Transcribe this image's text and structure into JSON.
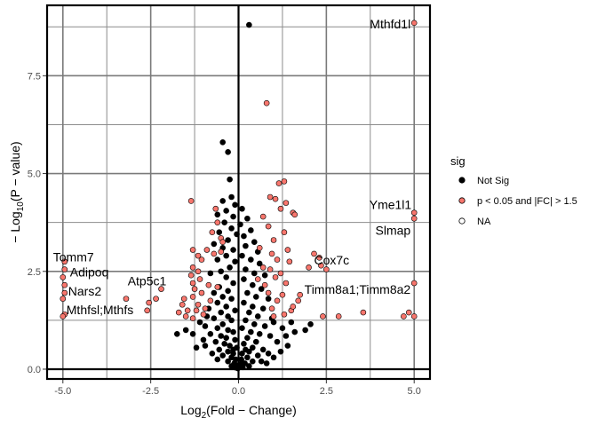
{
  "chart_data": {
    "type": "scatter",
    "title": "",
    "xlabel": {
      "prefix": "Log",
      "sub": "2",
      "rest": "(Fold − Change)"
    },
    "ylabel": {
      "prefix": "− Log",
      "sub": "10",
      "rest": "(P − value)"
    },
    "xlim": [
      -5.45,
      5.45
    ],
    "ylim": [
      -0.25,
      9.3
    ],
    "x_ticks": [
      -5.0,
      -2.5,
      0.0,
      2.5,
      5.0
    ],
    "x_tick_labels": [
      "-5.0",
      "-2.5",
      "0.0",
      "2.5",
      "5.0"
    ],
    "y_ticks": [
      0.0,
      2.5,
      5.0,
      7.5
    ],
    "y_tick_labels": [
      "0.0",
      "2.5",
      "5.0",
      "7.5"
    ],
    "grid": true,
    "reference_lines": {
      "x": 0,
      "y": 0
    },
    "legend": {
      "title": "sig",
      "placement": "right",
      "items": [
        {
          "label": "Not Sig",
          "fill": "#000000",
          "stroke": "#000000"
        },
        {
          "label": "p < 0.05 and |FC| > 1.5",
          "fill": "#F8766D",
          "stroke": "#000000"
        },
        {
          "label": "NA",
          "fill": "#ffffff",
          "stroke": "#000000"
        }
      ]
    },
    "series": [
      {
        "name": "Not Sig",
        "fill": "#000000",
        "points": [
          [
            0.3,
            8.8
          ],
          [
            -0.45,
            5.8
          ],
          [
            -0.3,
            5.55
          ],
          [
            -0.25,
            4.85
          ],
          [
            -0.2,
            4.4
          ],
          [
            -0.45,
            4.3
          ],
          [
            -0.1,
            4.2
          ],
          [
            -0.35,
            4.05
          ],
          [
            -0.6,
            3.95
          ],
          [
            -0.15,
            3.9
          ],
          [
            -0.4,
            3.75
          ],
          [
            -0.2,
            3.6
          ],
          [
            -0.55,
            3.5
          ],
          [
            -0.05,
            3.45
          ],
          [
            -0.3,
            3.3
          ],
          [
            -0.7,
            3.2
          ],
          [
            -0.45,
            3.1
          ],
          [
            -0.15,
            3.05
          ],
          [
            -0.35,
            2.9
          ],
          [
            -0.6,
            2.8
          ],
          [
            -0.1,
            2.75
          ],
          [
            -0.25,
            2.6
          ],
          [
            -0.5,
            2.5
          ],
          [
            -0.8,
            2.45
          ],
          [
            -0.35,
            2.35
          ],
          [
            -0.15,
            2.2
          ],
          [
            -0.55,
            2.1
          ],
          [
            -0.3,
            2.0
          ],
          [
            -0.7,
            1.95
          ],
          [
            -0.45,
            1.85
          ],
          [
            -0.2,
            1.8
          ],
          [
            -0.6,
            1.7
          ],
          [
            -0.35,
            1.6
          ],
          [
            -0.85,
            1.55
          ],
          [
            -0.1,
            1.5
          ],
          [
            -0.5,
            1.45
          ],
          [
            -0.3,
            1.35
          ],
          [
            -0.7,
            1.3
          ],
          [
            -0.2,
            1.25
          ],
          [
            -0.45,
            1.15
          ],
          [
            -0.95,
            1.1
          ],
          [
            -0.6,
            1.05
          ],
          [
            -0.3,
            1.0
          ],
          [
            -0.15,
            0.95
          ],
          [
            -0.8,
            0.9
          ],
          [
            -0.5,
            0.85
          ],
          [
            -0.35,
            0.8
          ],
          [
            -0.1,
            0.75
          ],
          [
            -0.65,
            0.7
          ],
          [
            -0.4,
            0.65
          ],
          [
            -0.25,
            0.6
          ],
          [
            -0.05,
            0.55
          ],
          [
            -0.55,
            0.5
          ],
          [
            -0.3,
            0.45
          ],
          [
            -0.15,
            0.4
          ],
          [
            -0.45,
            0.35
          ],
          [
            -0.2,
            0.3
          ],
          [
            -0.08,
            0.25
          ],
          [
            -0.3,
            0.2
          ],
          [
            -0.12,
            0.15
          ],
          [
            -0.05,
            0.1
          ],
          [
            -0.2,
            0.08
          ],
          [
            -1.0,
            0.75
          ],
          [
            -1.3,
            0.9
          ],
          [
            -1.5,
            1.0
          ],
          [
            -1.75,
            0.9
          ],
          [
            -1.1,
            1.2
          ],
          [
            -0.9,
            1.35
          ],
          [
            -1.2,
            0.55
          ],
          [
            -0.75,
            0.4
          ],
          [
            -0.95,
            0.6
          ],
          [
            -0.6,
            0.25
          ],
          [
            0.1,
            4.1
          ],
          [
            0.25,
            3.85
          ],
          [
            0.05,
            3.7
          ],
          [
            0.35,
            3.55
          ],
          [
            0.15,
            3.4
          ],
          [
            0.45,
            3.25
          ],
          [
            0.2,
            3.15
          ],
          [
            0.55,
            3.0
          ],
          [
            0.1,
            2.9
          ],
          [
            0.35,
            2.8
          ],
          [
            0.6,
            2.7
          ],
          [
            0.2,
            2.55
          ],
          [
            0.45,
            2.45
          ],
          [
            0.75,
            2.4
          ],
          [
            0.15,
            2.3
          ],
          [
            0.4,
            2.15
          ],
          [
            0.65,
            2.05
          ],
          [
            0.25,
            1.95
          ],
          [
            0.5,
            1.85
          ],
          [
            0.85,
            1.8
          ],
          [
            0.15,
            1.7
          ],
          [
            0.4,
            1.6
          ],
          [
            0.7,
            1.55
          ],
          [
            0.3,
            1.45
          ],
          [
            0.55,
            1.35
          ],
          [
            0.95,
            1.3
          ],
          [
            0.2,
            1.25
          ],
          [
            0.45,
            1.15
          ],
          [
            0.75,
            1.1
          ],
          [
            0.1,
            1.05
          ],
          [
            0.35,
            0.95
          ],
          [
            0.6,
            0.9
          ],
          [
            0.9,
            0.85
          ],
          [
            0.25,
            0.8
          ],
          [
            0.5,
            0.7
          ],
          [
            0.15,
            0.65
          ],
          [
            0.4,
            0.55
          ],
          [
            0.7,
            0.5
          ],
          [
            0.3,
            0.45
          ],
          [
            0.1,
            0.4
          ],
          [
            0.55,
            0.35
          ],
          [
            0.25,
            0.3
          ],
          [
            0.08,
            0.25
          ],
          [
            0.4,
            0.2
          ],
          [
            0.18,
            0.15
          ],
          [
            0.05,
            0.1
          ],
          [
            0.3,
            0.08
          ],
          [
            0.12,
            0.05
          ],
          [
            1.0,
            1.2
          ],
          [
            1.25,
            1.05
          ],
          [
            1.5,
            1.2
          ],
          [
            1.35,
            0.85
          ],
          [
            1.1,
            0.7
          ],
          [
            1.6,
            0.95
          ],
          [
            1.9,
            1.0
          ],
          [
            2.05,
            1.15
          ],
          [
            1.2,
            0.45
          ],
          [
            0.85,
            0.4
          ],
          [
            1.0,
            0.3
          ],
          [
            0.65,
            0.2
          ],
          [
            1.4,
            0.6
          ],
          [
            0.8,
            0.15
          ],
          [
            -0.02,
            0.02
          ],
          [
            0.02,
            0.05
          ],
          [
            -0.08,
            0.04
          ],
          [
            0.06,
            0.12
          ],
          [
            -0.15,
            0.5
          ],
          [
            0.2,
            0.5
          ]
        ]
      },
      {
        "name": "p < 0.05 and |FC| > 1.5",
        "fill": "#F8766D",
        "points": [
          [
            5.0,
            8.85
          ],
          [
            0.8,
            6.8
          ],
          [
            1.15,
            4.75
          ],
          [
            1.3,
            4.8
          ],
          [
            0.9,
            4.4
          ],
          [
            1.05,
            4.35
          ],
          [
            1.35,
            4.25
          ],
          [
            1.2,
            4.1
          ],
          [
            1.55,
            4.0
          ],
          [
            1.6,
            3.95
          ],
          [
            0.7,
            3.9
          ],
          [
            0.85,
            3.65
          ],
          [
            1.3,
            3.5
          ],
          [
            1.0,
            3.3
          ],
          [
            1.4,
            3.05
          ],
          [
            0.95,
            2.95
          ],
          [
            1.1,
            2.8
          ],
          [
            1.45,
            2.75
          ],
          [
            0.7,
            2.6
          ],
          [
            0.9,
            2.55
          ],
          [
            1.2,
            2.45
          ],
          [
            1.05,
            2.35
          ],
          [
            1.35,
            2.2
          ],
          [
            0.75,
            2.15
          ],
          [
            1.25,
            1.9
          ],
          [
            0.85,
            1.95
          ],
          [
            1.1,
            1.75
          ],
          [
            0.95,
            1.55
          ],
          [
            1.5,
            1.5
          ],
          [
            1.3,
            1.4
          ],
          [
            1.0,
            1.35
          ],
          [
            1.75,
            1.9
          ],
          [
            2.0,
            2.6
          ],
          [
            2.15,
            2.95
          ],
          [
            2.3,
            2.85
          ],
          [
            2.35,
            2.65
          ],
          [
            2.5,
            2.55
          ],
          [
            1.7,
            1.75
          ],
          [
            1.55,
            1.6
          ],
          [
            3.55,
            1.45
          ],
          [
            4.7,
            1.35
          ],
          [
            4.85,
            1.45
          ],
          [
            5.0,
            1.35
          ],
          [
            5.0,
            2.2
          ],
          [
            5.0,
            3.85
          ],
          [
            5.0,
            4.0
          ],
          [
            2.4,
            1.35
          ],
          [
            2.85,
            1.35
          ],
          [
            -0.6,
            3.75
          ],
          [
            -0.75,
            3.5
          ],
          [
            -0.5,
            3.35
          ],
          [
            -0.9,
            3.05
          ],
          [
            -0.7,
            2.95
          ],
          [
            -1.05,
            2.8
          ],
          [
            -1.3,
            2.6
          ],
          [
            -1.15,
            2.5
          ],
          [
            -1.35,
            2.4
          ],
          [
            -1.3,
            2.2
          ],
          [
            -1.1,
            2.3
          ],
          [
            -1.25,
            2.05
          ],
          [
            -0.85,
            2.15
          ],
          [
            -0.6,
            2.1
          ],
          [
            -1.05,
            1.95
          ],
          [
            -1.3,
            1.85
          ],
          [
            -1.55,
            1.8
          ],
          [
            -0.8,
            1.75
          ],
          [
            -1.6,
            1.65
          ],
          [
            -1.15,
            1.65
          ],
          [
            -0.95,
            1.55
          ],
          [
            -1.2,
            1.5
          ],
          [
            -1.45,
            1.5
          ],
          [
            -1.7,
            1.45
          ],
          [
            -1.0,
            1.4
          ],
          [
            -1.3,
            1.3
          ],
          [
            -1.5,
            1.35
          ],
          [
            -1.35,
            4.3
          ],
          [
            -0.65,
            4.1
          ],
          [
            -1.3,
            3.05
          ],
          [
            -2.2,
            2.05
          ],
          [
            -2.55,
            1.7
          ],
          [
            -2.6,
            1.5
          ],
          [
            -2.35,
            1.8
          ],
          [
            -3.2,
            1.8
          ],
          [
            -4.95,
            1.4
          ],
          [
            -5.0,
            1.35
          ],
          [
            -4.95,
            1.95
          ],
          [
            -5.0,
            1.8
          ],
          [
            -4.95,
            2.15
          ],
          [
            -5.0,
            2.35
          ],
          [
            -4.95,
            2.55
          ],
          [
            -4.95,
            2.75
          ],
          [
            -0.45,
            3.25
          ],
          [
            -0.5,
            3.0
          ],
          [
            -1.15,
            2.9
          ],
          [
            0.6,
            3.1
          ],
          [
            0.55,
            2.3
          ]
        ]
      }
    ],
    "annotations": [
      {
        "text": "Mthfd1l",
        "x": 5.0,
        "y": 8.85
      },
      {
        "text": "Yme1l1",
        "x": 5.0,
        "y": 4.0
      },
      {
        "text": "Slmap",
        "x": 5.0,
        "y": 3.85
      },
      {
        "text": "Cox7c",
        "x": 2.15,
        "y": 2.95
      },
      {
        "text": "Timm8a1;Timm8a2",
        "x": 5.0,
        "y": 2.2
      },
      {
        "text": "Tomm7",
        "x": -4.95,
        "y": 2.75
      },
      {
        "text": "Adipoq",
        "x": -4.95,
        "y": 2.55
      },
      {
        "text": "Nars2",
        "x": -4.95,
        "y": 2.15
      },
      {
        "text": "Mthfsl;Mthfs",
        "x": -4.95,
        "y": 1.95
      },
      {
        "text": "Atp5c1",
        "x": -2.6,
        "y": 2.05
      }
    ]
  }
}
